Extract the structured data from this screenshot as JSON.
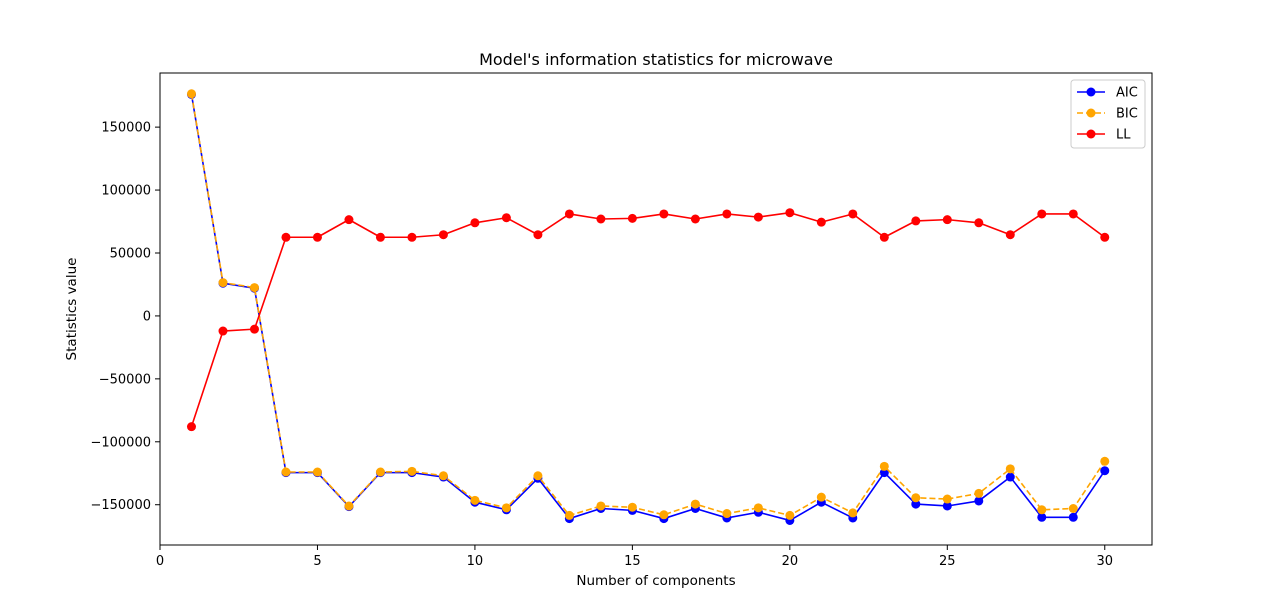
{
  "chart_data": {
    "type": "line",
    "title": "Model's information statistics for microwave",
    "xlabel": "Number of components",
    "ylabel": "Statistics value",
    "xlim": [
      0,
      31.5
    ],
    "ylim": [
      -182000,
      193000
    ],
    "x_ticks": [
      0,
      5,
      10,
      15,
      20,
      25,
      30
    ],
    "y_ticks": [
      -150000,
      -100000,
      -50000,
      0,
      50000,
      100000,
      150000
    ],
    "y_tick_labels": [
      "−150000",
      "−100000",
      "−50000",
      "0",
      "50000",
      "100000",
      "150000"
    ],
    "grid": false,
    "legend_position": "top-right",
    "x": [
      1,
      2,
      3,
      4,
      5,
      6,
      7,
      8,
      9,
      10,
      11,
      12,
      13,
      14,
      15,
      16,
      17,
      18,
      19,
      20,
      21,
      22,
      23,
      24,
      25,
      26,
      27,
      28,
      29,
      30
    ],
    "series": [
      {
        "name": "AIC",
        "color": "#0000ff",
        "line_style": "solid",
        "marker": "circle",
        "values": [
          176000,
          26000,
          22000,
          -124500,
          -124500,
          -151500,
          -124500,
          -124500,
          -128000,
          -148000,
          -154000,
          -129000,
          -161000,
          -153000,
          -154500,
          -161000,
          -153000,
          -160500,
          -156000,
          -162500,
          -148000,
          -160500,
          -124500,
          -149500,
          -151000,
          -147000,
          -128000,
          -160000,
          -160000,
          -123000
        ]
      },
      {
        "name": "BIC",
        "color": "#ffa500",
        "line_style": "dashed",
        "marker": "circle",
        "values": [
          176500,
          26500,
          22500,
          -124000,
          -124000,
          -151000,
          -124000,
          -123500,
          -127000,
          -146500,
          -152500,
          -127000,
          -158500,
          -151000,
          -152000,
          -158000,
          -149500,
          -157000,
          -152500,
          -158500,
          -144000,
          -156500,
          -119500,
          -144500,
          -145500,
          -141000,
          -121500,
          -154000,
          -153000,
          -115500
        ]
      },
      {
        "name": "LL",
        "color": "#ff0000",
        "line_style": "solid",
        "marker": "circle",
        "values": [
          -88000,
          -12000,
          -10500,
          62500,
          62500,
          76500,
          62500,
          62500,
          64500,
          74000,
          78000,
          64500,
          81000,
          77000,
          77500,
          81000,
          77000,
          81000,
          78500,
          82000,
          74500,
          81000,
          62500,
          75500,
          76500,
          74000,
          64500,
          81000,
          81000,
          62500
        ]
      }
    ]
  }
}
